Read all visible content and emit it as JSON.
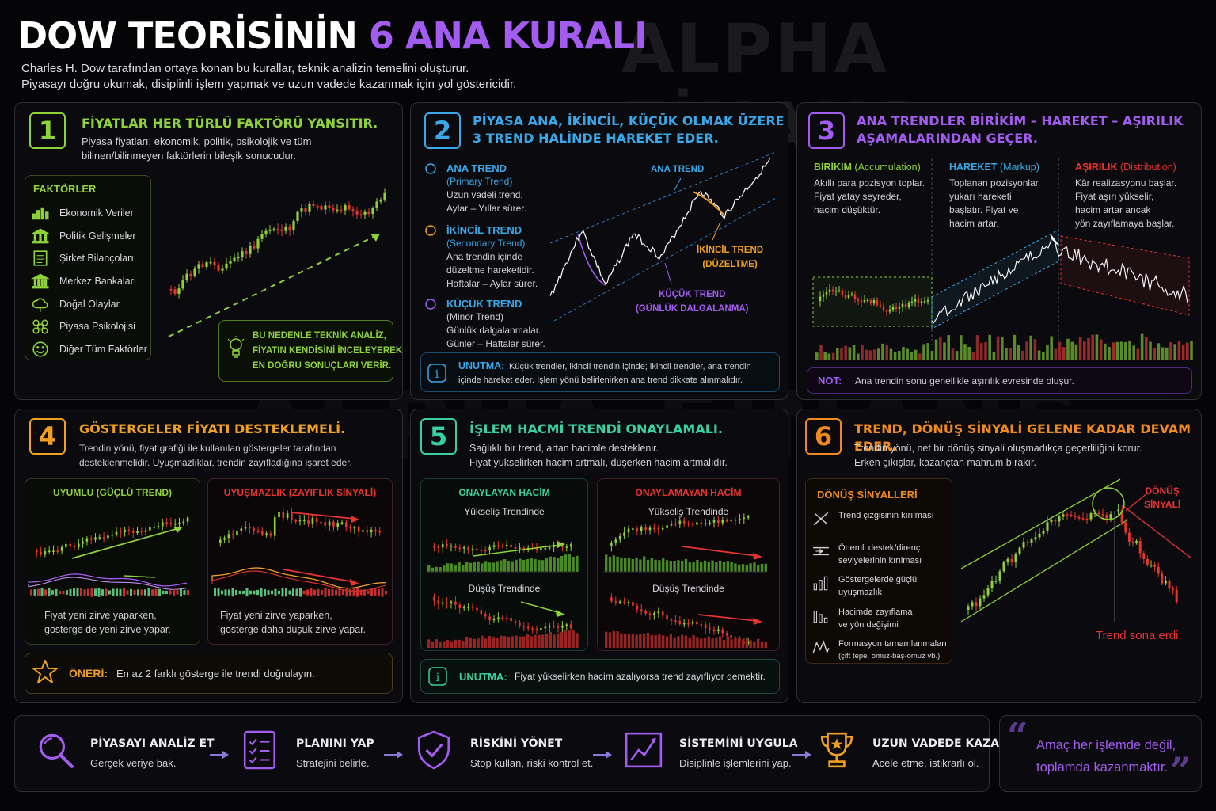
{
  "watermark": "ALPHA FİNANS",
  "header": {
    "title_white": "DOW TEORİSİNİN ",
    "title_purple": "6 ANA KURALI",
    "subtitle_line1": "Charles H. Dow tarafından ortaya konan bu kurallar, teknik analizin temelini oluşturur.",
    "subtitle_line2": "Piyasayı doğru okumak, disiplinli işlem yapmak ve uzun vadede kazanmak için yol göstericidir."
  },
  "colors": {
    "green": "#8fd13a",
    "blue": "#3aa8e8",
    "purple": "#a35cf0",
    "orange": "#f0a020",
    "teal": "#38d0a0",
    "orange2": "#f08a1e",
    "red": "#e8342f"
  },
  "rule1": {
    "number": "1",
    "title": "FİYATLAR HER TÜRLÜ FAKTÖRÜ YANSITIR.",
    "text1": "Piyasa fiyatları; ekonomik, politik, psikolojik ve tüm",
    "text2": "bilinen/bilinmeyen faktörlerin bileşik sonucudur.",
    "factors_title": "FAKTÖRLER",
    "factors": [
      {
        "icon": "bar-chart-icon",
        "label": "Ekonomik Veriler"
      },
      {
        "icon": "government-building-icon",
        "label": "Politik Gelişmeler"
      },
      {
        "icon": "report-document-icon",
        "label": "Şirket Bilançoları"
      },
      {
        "icon": "bank-icon",
        "label": "Merkez Bankaları"
      },
      {
        "icon": "weather-cloud-icon",
        "label": "Doğal Olaylar"
      },
      {
        "icon": "people-group-icon",
        "label": "Piyasa Psikolojisi"
      },
      {
        "icon": "smiley-icon",
        "label": "Diğer Tüm Faktörler"
      }
    ],
    "note_line1": "BU NEDENLE TEKNİK ANALİZ,",
    "note_line2": "FİYATIN KENDİSİNİ İNCELEYEREK",
    "note_line3": "EN DOĞRU SONUÇLARI VERİR."
  },
  "rule2": {
    "number": "2",
    "title_line1": "PİYASA ANA, İKİNCİL, KÜÇÜK OLMAK ÜZERE",
    "title_line2": "3 TREND HALİNDE HAREKET EDER.",
    "primary": {
      "title": "ANA TREND",
      "sub": "(Primary Trend)",
      "d1": "Uzun vadeli trend.",
      "d2": "Aylar – Yıllar sürer."
    },
    "secondary": {
      "title": "İKİNCİL TREND",
      "sub": "(Secondary Trend)",
      "d1": "Ana trendin içinde",
      "d2": "düzeltme hareketidir.",
      "d3": "Haftalar – Aylar sürer."
    },
    "minor": {
      "title": "KÜÇÜK TREND",
      "sub": "(Minor Trend)",
      "d1": "Günlük dalgalanmalar.",
      "d2": "Günler – Haftalar sürer."
    },
    "chart_label_primary": "ANA TREND",
    "chart_label_secondary1": "İKİNCİL TREND",
    "chart_label_secondary2": "(DÜZELTME)",
    "chart_label_minor1": "KÜÇÜK TREND",
    "chart_label_minor2": "(GÜNLÜK DALGALANMA)",
    "note_label": "UNUTMA:",
    "note_line1": "Küçük trendler, ikincil trendin içinde; ikincil trendler, ana trendin",
    "note_line2": "içinde hareket eder. İşlem yönü belirlenirken ana trend dikkate alınmalıdır."
  },
  "rule3": {
    "number": "3",
    "title_line1": "ANA TRENDLER BİRİKİM – HAREKET – AŞIRILIK",
    "title_line2": "AŞAMALARINDAN GEÇER.",
    "phase1": {
      "title": "BİRİKİM",
      "sub": "(Accumulation)",
      "l1": "Akıllı para pozisyon toplar.",
      "l2": "Fiyat yatay seyreder,",
      "l3": "hacim düşüktür."
    },
    "phase2": {
      "title": "HAREKET",
      "sub": "(Markup)",
      "l1": "Toplanan pozisyonlar",
      "l2": "yukarı hareketi",
      "l3": "başlatır. Fiyat ve",
      "l4": "hacim artar."
    },
    "phase3": {
      "title": "AŞIRILIK",
      "sub": "(Distribution)",
      "l1": "Kâr realizasyonu başlar.",
      "l2": "Fiyat aşırı yükselir,",
      "l3": "hacim artar ancak",
      "l4": "yön zayıflamaya başlar."
    },
    "note_label": "NOT:",
    "note_text": "Ana trendin sonu genellikle aşırılık evresinde oluşur."
  },
  "rule4": {
    "number": "4",
    "title": "GÖSTERGELER FİYATI DESTEKLEMELİ.",
    "text1": "Trendin yönü, fiyat grafiği ile kullanılan göstergeler tarafından",
    "text2": "desteklenmelidir. Uyuşmazlıklar, trendin zayıfladığına işaret eder.",
    "left_title": "UYUMLU (GÜÇLÜ TREND)",
    "left_text1": "Fiyat yeni zirve yaparken,",
    "left_text2": "gösterge de yeni zirve yapar.",
    "right_title": "UYUŞMAZLIK (ZAYIFLIK SİNYALİ)",
    "right_text1": "Fiyat yeni zirve yaparken,",
    "right_text2": "gösterge daha düşük zirve yapar.",
    "tip_label": "ÖNERİ:",
    "tip_text": "En az 2 farklı gösterge ile trendi doğrulayın."
  },
  "rule5": {
    "number": "5",
    "title": "İŞLEM HACMİ TRENDİ ONAYLAMALI.",
    "text1": "Sağlıklı bir trend, artan hacimle desteklenir.",
    "text2": "Fiyat yükselirken hacim artmalı, düşerken hacim artmalıdır.",
    "left_title": "ONAYLAYAN HACİM",
    "right_title": "ONAYLAMAYAN HACİM",
    "up_label": "Yükseliş Trendinde",
    "down_label": "Düşüş Trendinde",
    "note_label": "UNUTMA:",
    "note_text": "Fiyat yükselirken hacim azalıyorsa trend zayıflıyor demektir."
  },
  "rule6": {
    "number": "6",
    "title": "TREND, DÖNÜŞ SİNYALİ GELENE KADAR DEVAM EDER.",
    "text1": "Trendin yönü, net bir dönüş sinyali oluşmadıkça geçerliliğini korur.",
    "text2": "Erken çıkışlar, kazançtan mahrum bırakır.",
    "signals_title": "DÖNÜŞ SİNYALLERİ",
    "signals": [
      {
        "icon": "broken-trendline-icon",
        "l1": "Trend çizgisinin kırılması",
        "l2": ""
      },
      {
        "icon": "support-resistance-icon",
        "l1": "Önemli destek/direnç",
        "l2": "seviyelerinin kırılması"
      },
      {
        "icon": "divergence-icon",
        "l1": "Göstergelerde güçlü",
        "l2": "uyuşmazlık"
      },
      {
        "icon": "volume-weakening-icon",
        "l1": "Hacimde zayıflama",
        "l2": "ve yön değişimi"
      },
      {
        "icon": "pattern-icon",
        "l1": "Formasyon tamamlanmaları",
        "l2": "(çift tepe, omuz-baş-omuz vb.)"
      }
    ],
    "signal_label1": "DÖNÜŞ",
    "signal_label2": "SİNYALİ",
    "end_label": "Trend sona erdi."
  },
  "flow": [
    {
      "icon": "magnifier-icon",
      "title": "PİYASAYI ANALİZ ET",
      "text": "Gerçek veriye bak."
    },
    {
      "icon": "checklist-icon",
      "title": "PLANINI YAP",
      "text": "Stratejini belirle."
    },
    {
      "icon": "shield-check-icon",
      "title": "RİSKİNİ YÖNET",
      "text": "Stop kullan, riski kontrol et."
    },
    {
      "icon": "chart-growth-icon",
      "title": "SİSTEMİNİ UYGULA",
      "text": "Disiplinle işlemlerini yap."
    },
    {
      "icon": "trophy-icon",
      "title": "UZUN VADEDE KAZAN",
      "text": "Acele etme, istikrarlı ol."
    }
  ],
  "quote": {
    "line1": "Amaç her işlemde değil,",
    "line2": "toplamda kazanmaktır."
  }
}
